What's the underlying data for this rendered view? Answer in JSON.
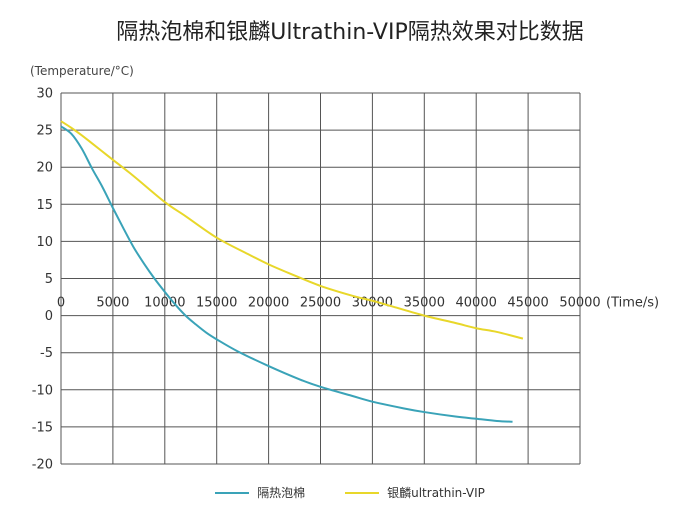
{
  "chart_data": {
    "type": "line",
    "title": "隔热泡棉和银麟Ultrathin-VIP隔热效果对比数据",
    "ylabel": "(Temperature/°C)",
    "xlabel": "(Time/s)",
    "xlim": [
      0,
      50000
    ],
    "ylim": [
      -20,
      30
    ],
    "xticks": [
      "0",
      "5000",
      "10000",
      "15000",
      "20000",
      "25000",
      "30000",
      "35000",
      "40000",
      "45000",
      "50000"
    ],
    "yticks": [
      "30",
      "25",
      "20",
      "15",
      "10",
      "5",
      "0",
      "-5",
      "-10",
      "-15",
      "-20"
    ],
    "grid": true,
    "legend_position": "bottom",
    "series": [
      {
        "name": "隔热泡棉",
        "color": "#3aa3b8",
        "points": [
          [
            0,
            25.5
          ],
          [
            1000,
            24.5
          ],
          [
            2000,
            22.5
          ],
          [
            3000,
            19.8
          ],
          [
            4000,
            17.3
          ],
          [
            5000,
            14.5
          ],
          [
            6000,
            11.8
          ],
          [
            7000,
            9.2
          ],
          [
            8000,
            7.0
          ],
          [
            9000,
            5.0
          ],
          [
            10000,
            3.2
          ],
          [
            11000,
            1.5
          ],
          [
            12000,
            0.0
          ],
          [
            13000,
            -1.2
          ],
          [
            14000,
            -2.3
          ],
          [
            15000,
            -3.2
          ],
          [
            17000,
            -4.8
          ],
          [
            20000,
            -6.8
          ],
          [
            23000,
            -8.6
          ],
          [
            25000,
            -9.6
          ],
          [
            28000,
            -10.8
          ],
          [
            30000,
            -11.6
          ],
          [
            33000,
            -12.5
          ],
          [
            35000,
            -13.0
          ],
          [
            38000,
            -13.6
          ],
          [
            40000,
            -13.9
          ],
          [
            42000,
            -14.2
          ],
          [
            43500,
            -14.3
          ]
        ]
      },
      {
        "name": "银麟ultrathin-VIP",
        "color": "#e8d72a",
        "points": [
          [
            0,
            26.2
          ],
          [
            1000,
            25.3
          ],
          [
            2000,
            24.3
          ],
          [
            3000,
            23.2
          ],
          [
            4000,
            22.1
          ],
          [
            5000,
            21.0
          ],
          [
            7000,
            18.8
          ],
          [
            10000,
            15.3
          ],
          [
            12000,
            13.4
          ],
          [
            15000,
            10.5
          ],
          [
            18000,
            8.3
          ],
          [
            20000,
            6.9
          ],
          [
            22000,
            5.7
          ],
          [
            25000,
            4.0
          ],
          [
            28000,
            2.7
          ],
          [
            30000,
            2.0
          ],
          [
            32000,
            1.2
          ],
          [
            35000,
            0.0
          ],
          [
            38000,
            -1.0
          ],
          [
            40000,
            -1.7
          ],
          [
            42000,
            -2.2
          ],
          [
            44500,
            -3.1
          ]
        ]
      }
    ]
  }
}
